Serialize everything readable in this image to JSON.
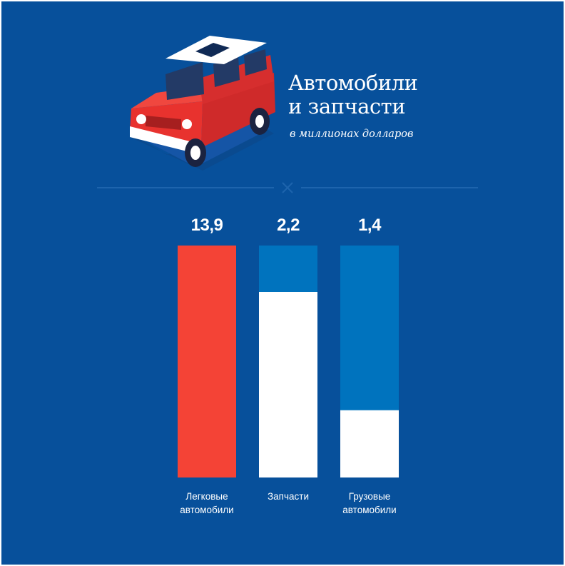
{
  "chart_data": {
    "type": "bar",
    "title": "Автомобили и запчасти",
    "title_lines": [
      "Автомобили",
      "и запчасти"
    ],
    "subtitle": "в миллионах долларов",
    "categories": [
      "Легковые\nавтомобили",
      "Запчасти",
      "Грузовые\nавтомобили"
    ],
    "values": [
      13.9,
      2.2,
      1.4
    ],
    "value_labels": [
      "13,9",
      "2,2",
      "1,4"
    ],
    "bar_fill_fractions": [
      1.0,
      0.8,
      0.29
    ],
    "grid": false,
    "legend": "none"
  },
  "colors": {
    "background": "#07509b",
    "bar_primary": "#f44336",
    "bar_secondary_top": "#0073be",
    "bar_secondary_fill": "#ffffff",
    "divider": "#1d64ad"
  },
  "illustration": {
    "icon": "car-icon"
  }
}
